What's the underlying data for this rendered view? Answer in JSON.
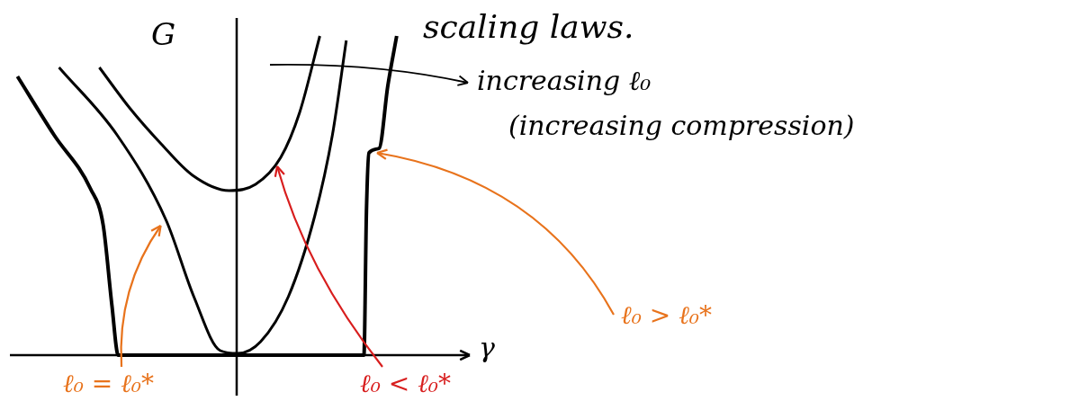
{
  "chart_data": {
    "type": "line",
    "title": "scaling laws.",
    "x_label": "γ",
    "y_label": "G",
    "xlim": [
      -1.8,
      1.85
    ],
    "ylim": [
      -0.45,
      3.75
    ],
    "tick_labels": false,
    "grid": false,
    "annotations": [
      "increasing ℓ₀",
      "(increasing compression)"
    ],
    "series": [
      {
        "name": "ℓ₀ < ℓ₀*",
        "color": "#000000",
        "x": [
          -1.09,
          -0.85,
          -0.6,
          -0.35,
          -0.06,
          0.15,
          0.35,
          0.5,
          0.66
        ],
        "values": [
          3.2,
          2.75,
          2.35,
          2.0,
          1.83,
          1.9,
          2.2,
          2.7,
          3.55
        ]
      },
      {
        "name": "ℓ₀ = ℓ₀*",
        "color": "#000000",
        "x": [
          -1.41,
          -0.95,
          -0.56,
          -0.34,
          -0.13,
          0.01,
          0.19,
          0.41,
          0.62,
          0.76,
          0.87
        ],
        "values": [
          3.2,
          2.45,
          1.5,
          0.65,
          0.05,
          0.02,
          0.15,
          0.65,
          1.55,
          2.45,
          3.5
        ]
      },
      {
        "name": "ℓ₀ > ℓ₀*",
        "color": "#000000",
        "x": [
          -1.74,
          -1.45,
          -1.16,
          -1.06,
          -0.99,
          -0.94,
          1.01,
          1.03,
          1.05,
          1.13,
          1.2,
          1.27
        ],
        "values": [
          3.1,
          2.45,
          1.85,
          1.45,
          0.55,
          0.0,
          0.0,
          1.6,
          2.25,
          2.3,
          3.0,
          3.55
        ]
      }
    ]
  }
}
